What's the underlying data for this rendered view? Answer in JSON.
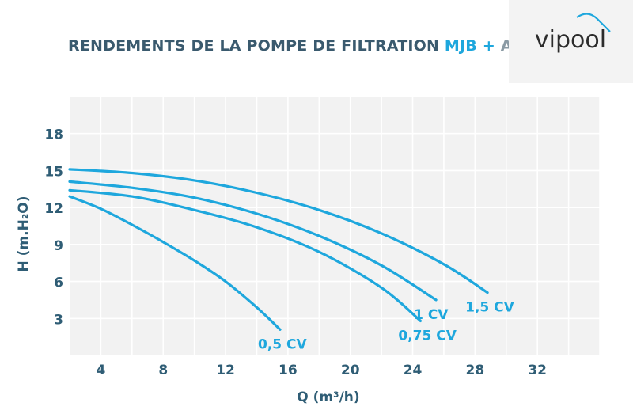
{
  "header": {
    "title_main": "RENDEMENTS DE LA POMPE DE FILTRATION",
    "title_mjb": "MJB",
    "title_plus": "+",
    "title_acis": "ACIS",
    "logo_text": "vipool"
  },
  "colors": {
    "curve": "#1ea7dd",
    "axis_text": "#2f5d75",
    "plot_bg": "#f2f2f2",
    "grid": "#ffffff",
    "title_dark": "#3a5a6e",
    "title_accent": "#1ea7dd"
  },
  "chart_data": {
    "type": "line",
    "title": "RENDEMENTS DE LA POMPE DE FILTRATION MJB + ACIS",
    "xlabel": "Q (m³/h)",
    "ylabel": "H (m.H₂O)",
    "xlim": [
      2,
      36
    ],
    "ylim": [
      0,
      21
    ],
    "xticks": [
      4,
      8,
      12,
      16,
      20,
      24,
      28,
      32
    ],
    "yticks": [
      3,
      6,
      9,
      12,
      15,
      18
    ],
    "xtick_labels": [
      "4",
      "8",
      "12",
      "16",
      "20",
      "24",
      "28",
      "32"
    ],
    "ytick_labels": [
      "3",
      "6",
      "9",
      "12",
      "15",
      "18"
    ],
    "grid": true,
    "series": [
      {
        "name": "0,5 CV",
        "x": [
          2,
          4,
          6,
          8,
          10,
          12,
          14,
          15.5
        ],
        "y": [
          12.9,
          11.9,
          10.6,
          9.2,
          7.7,
          6.0,
          3.9,
          2.1
        ]
      },
      {
        "name": "0,75 CV",
        "x": [
          2,
          6,
          10,
          14,
          18,
          22,
          24.5
        ],
        "y": [
          13.4,
          12.9,
          11.8,
          10.4,
          8.4,
          5.5,
          2.8
        ]
      },
      {
        "name": "1 CV",
        "x": [
          2,
          6,
          10,
          14,
          18,
          22,
          25.5
        ],
        "y": [
          14.1,
          13.6,
          12.8,
          11.5,
          9.7,
          7.3,
          4.5
        ]
      },
      {
        "name": "1,5 CV",
        "x": [
          2,
          6,
          10,
          14,
          18,
          22,
          26,
          28.8
        ],
        "y": [
          15.1,
          14.8,
          14.2,
          13.2,
          11.8,
          9.9,
          7.4,
          5.1
        ]
      }
    ]
  }
}
